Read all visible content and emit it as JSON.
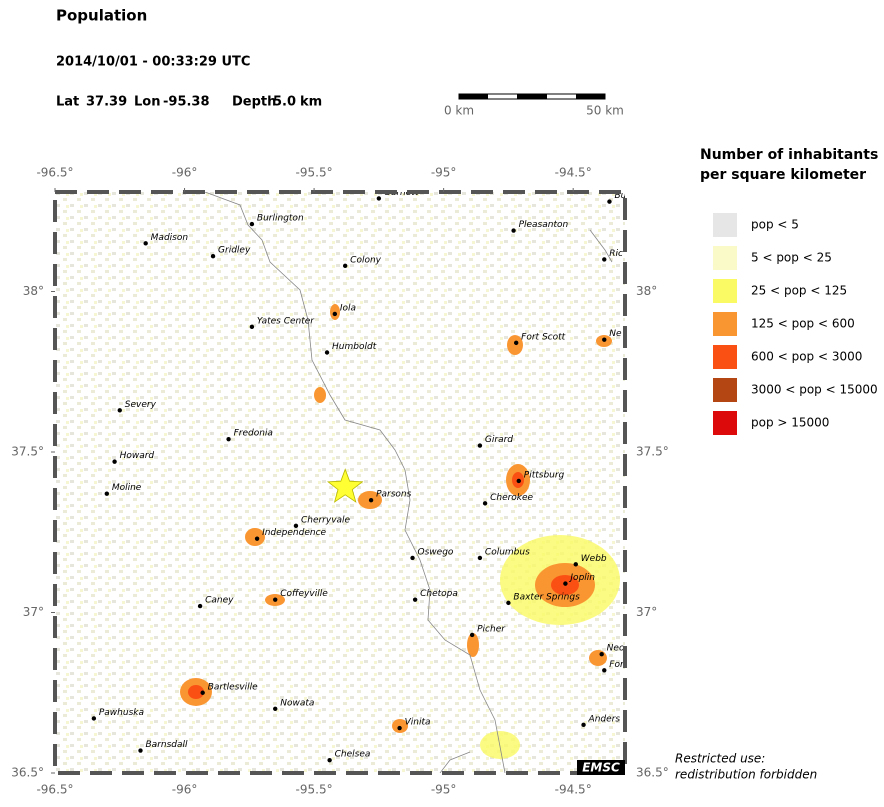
{
  "chart_data": {
    "type": "map",
    "title": "Population",
    "subtitle": "2014/10/01 - 00:33:29 UTC",
    "epicenter": {
      "lat_label": "Lat",
      "lat": 37.39,
      "lon_label": "Lon",
      "lon": -95.38,
      "depth_label": "Depth",
      "depth": {
        "value": 5,
        "label": "5.0"
      },
      "depth_unit": "km"
    },
    "scale_bar": {
      "start_label": "0 km",
      "end_label": "50 km"
    },
    "xlim": [
      -96.5,
      -94.3
    ],
    "ylim": [
      36.5,
      38.31
    ],
    "xticks": [
      {
        "value": -96.5,
        "label": "-96.5°"
      },
      {
        "value": -96,
        "label": "-96°"
      },
      {
        "value": -95.5,
        "label": "-95.5°"
      },
      {
        "value": -95,
        "label": "-95°"
      },
      {
        "value": -94.5,
        "label": "-94.5°"
      }
    ],
    "yticks": [
      {
        "value": 36.5,
        "label": "36.5°"
      },
      {
        "value": 37,
        "label": "37°"
      },
      {
        "value": 37.5,
        "label": "37.5°"
      },
      {
        "value": 38,
        "label": "38°"
      }
    ],
    "cities": [
      {
        "name": "Garnett",
        "lon": -95.25,
        "lat": 38.29
      },
      {
        "name": "Burlington",
        "lon": -95.74,
        "lat": 38.21
      },
      {
        "name": "Madison",
        "lon": -96.15,
        "lat": 38.15
      },
      {
        "name": "Gridley",
        "lon": -95.89,
        "lat": 38.11
      },
      {
        "name": "Colony",
        "lon": -95.38,
        "lat": 38.08
      },
      {
        "name": "Pleasanton",
        "lon": -94.73,
        "lat": 38.19
      },
      {
        "name": "Iola",
        "lon": -95.42,
        "lat": 37.93
      },
      {
        "name": "Yates Center",
        "lon": -95.74,
        "lat": 37.89
      },
      {
        "name": "Humboldt",
        "lon": -95.45,
        "lat": 37.81
      },
      {
        "name": "Fort Scott",
        "lon": -94.72,
        "lat": 37.84
      },
      {
        "name": "Severy",
        "lon": -96.25,
        "lat": 37.63
      },
      {
        "name": "Fredonia",
        "lon": -95.83,
        "lat": 37.54
      },
      {
        "name": "Girard",
        "lon": -94.86,
        "lat": 37.52
      },
      {
        "name": "Howard",
        "lon": -96.27,
        "lat": 37.47
      },
      {
        "name": "Pittsburg",
        "lon": -94.71,
        "lat": 37.41
      },
      {
        "name": "Moline",
        "lon": -96.3,
        "lat": 37.37
      },
      {
        "name": "Parsons",
        "lon": -95.28,
        "lat": 37.35
      },
      {
        "name": "Cherokee",
        "lon": -94.84,
        "lat": 37.34
      },
      {
        "name": "Cherryvale",
        "lon": -95.57,
        "lat": 37.27
      },
      {
        "name": "Independence",
        "lon": -95.72,
        "lat": 37.23
      },
      {
        "name": "Oswego",
        "lon": -95.12,
        "lat": 37.17
      },
      {
        "name": "Columbus",
        "lon": -94.86,
        "lat": 37.17
      },
      {
        "name": "Webb",
        "lon": -94.49,
        "lat": 37.15
      },
      {
        "name": "Joplin",
        "lon": -94.53,
        "lat": 37.09
      },
      {
        "name": "Caney",
        "lon": -95.94,
        "lat": 37.02
      },
      {
        "name": "Coffeyville",
        "lon": -95.65,
        "lat": 37.04
      },
      {
        "name": "Chetopa",
        "lon": -95.11,
        "lat": 37.04
      },
      {
        "name": "Baxter Springs",
        "lon": -94.75,
        "lat": 37.03
      },
      {
        "name": "Picher",
        "lon": -94.89,
        "lat": 36.93
      },
      {
        "name": "Bartlesville",
        "lon": -95.93,
        "lat": 36.75
      },
      {
        "name": "Pawhuska",
        "lon": -96.35,
        "lat": 36.67
      },
      {
        "name": "Nowata",
        "lon": -95.65,
        "lat": 36.7
      },
      {
        "name": "Vinita",
        "lon": -95.17,
        "lat": 36.64
      },
      {
        "name": "Barnsdall",
        "lon": -96.17,
        "lat": 36.57
      },
      {
        "name": "Chelsea",
        "lon": -95.44,
        "lat": 36.54
      },
      {
        "name": "Bu",
        "lon": -94.36,
        "lat": 38.28
      },
      {
        "name": "Ric",
        "lon": -94.38,
        "lat": 38.1
      },
      {
        "name": "Ne",
        "lon": -94.38,
        "lat": 37.85
      },
      {
        "name": "Neo",
        "lon": -94.39,
        "lat": 36.87
      },
      {
        "name": "For",
        "lon": -94.38,
        "lat": 36.82
      },
      {
        "name": "Anders",
        "lon": -94.46,
        "lat": 36.65
      }
    ],
    "legend": {
      "title": [
        "Number of inhabitants",
        "per square kilometer"
      ],
      "classes": [
        {
          "label": "pop < 5",
          "color": "#e6e6e6"
        },
        {
          "label": "5 < pop < 25",
          "color": "#fafac8"
        },
        {
          "label": "25 < pop < 125",
          "color": "#fafa64"
        },
        {
          "label": "125 < pop < 600",
          "color": "#fa9632"
        },
        {
          "label": "600 < pop < 3000",
          "color": "#fa5014"
        },
        {
          "label": "3000 < pop < 15000",
          "color": "#b44614"
        },
        {
          "label": "pop > 15000",
          "color": "#dc0a0a"
        }
      ]
    },
    "notice": [
      "Restricted use:",
      "redistribution forbidden"
    ],
    "logo": "EMSC"
  }
}
